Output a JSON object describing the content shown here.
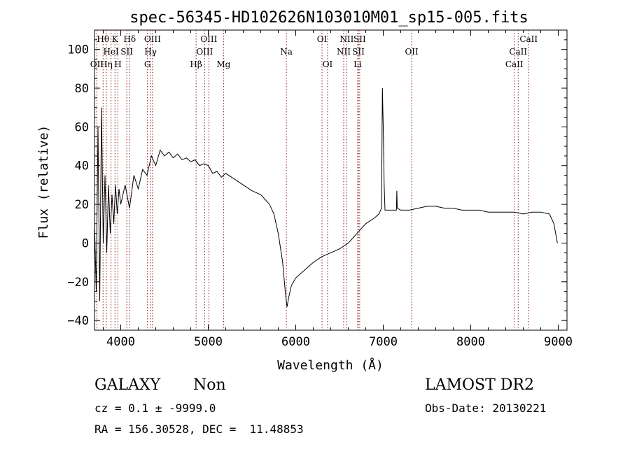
{
  "chart_data": {
    "type": "line",
    "title": "spec-56345-HD102626N103010M01_sp15-005.fits",
    "xlabel": "Wavelength (Å)",
    "ylabel": "Flux (relative)",
    "xlim": [
      3700,
      9100
    ],
    "ylim": [
      -45,
      110
    ],
    "xticks": [
      4000,
      5000,
      6000,
      7000,
      8000,
      9000
    ],
    "yticks": [
      -40,
      -20,
      0,
      20,
      40,
      60,
      80,
      100
    ],
    "grid": false,
    "line_color": "#000000",
    "marker_color": "#8b1a1a",
    "lines": [
      {
        "label": "OII",
        "x": 3727,
        "row": 3
      },
      {
        "label": "Hθ",
        "x": 3798,
        "row": 1
      },
      {
        "label": "Hη",
        "x": 3835,
        "row": 3
      },
      {
        "label": "HeI",
        "x": 3889,
        "row": 2
      },
      {
        "label": "K",
        "x": 3934,
        "row": 1
      },
      {
        "label": "H",
        "x": 3968,
        "row": 3
      },
      {
        "label": "SII",
        "x": 4069,
        "row": 2
      },
      {
        "label": "Hδ",
        "x": 4102,
        "row": 1
      },
      {
        "label": "G",
        "x": 4305,
        "row": 3
      },
      {
        "label": "Hγ",
        "x": 4341,
        "row": 2
      },
      {
        "label": "OIII",
        "x": 4363,
        "row": 1
      },
      {
        "label": "Hβ",
        "x": 4861,
        "row": 3
      },
      {
        "label": "OIII",
        "x": 4959,
        "row": 2
      },
      {
        "label": "OIII",
        "x": 5007,
        "row": 1
      },
      {
        "label": "Mg",
        "x": 5175,
        "row": 3
      },
      {
        "label": "Na",
        "x": 5893,
        "row": 2
      },
      {
        "label": "OI",
        "x": 6300,
        "row": 1
      },
      {
        "label": "OI",
        "x": 6364,
        "row": 3
      },
      {
        "label": "NII",
        "x": 6548,
        "row": 2
      },
      {
        "label": "NII",
        "x": 6583,
        "row": 1
      },
      {
        "label": "Li",
        "x": 6708,
        "row": 3
      },
      {
        "label": "SII",
        "x": 6716,
        "row": 2
      },
      {
        "label": "SII",
        "x": 6731,
        "row": 1
      },
      {
        "label": "OII",
        "x": 7325,
        "row": 2
      },
      {
        "label": "CaII",
        "x": 8498,
        "row": 3
      },
      {
        "label": "CaII",
        "x": 8542,
        "row": 2
      },
      {
        "label": "CaII",
        "x": 8662,
        "row": 1
      }
    ],
    "spectrum": [
      [
        3700,
        10
      ],
      [
        3720,
        -25
      ],
      [
        3740,
        60
      ],
      [
        3760,
        -30
      ],
      [
        3780,
        70
      ],
      [
        3800,
        0
      ],
      [
        3820,
        35
      ],
      [
        3840,
        -5
      ],
      [
        3860,
        30
      ],
      [
        3880,
        5
      ],
      [
        3900,
        25
      ],
      [
        3920,
        10
      ],
      [
        3940,
        30
      ],
      [
        3960,
        15
      ],
      [
        3980,
        28
      ],
      [
        4000,
        20
      ],
      [
        4050,
        30
      ],
      [
        4100,
        18
      ],
      [
        4150,
        35
      ],
      [
        4200,
        28
      ],
      [
        4250,
        38
      ],
      [
        4300,
        35
      ],
      [
        4350,
        45
      ],
      [
        4400,
        40
      ],
      [
        4450,
        48
      ],
      [
        4500,
        45
      ],
      [
        4550,
        47
      ],
      [
        4600,
        44
      ],
      [
        4650,
        46
      ],
      [
        4700,
        43
      ],
      [
        4750,
        44
      ],
      [
        4800,
        42
      ],
      [
        4850,
        43
      ],
      [
        4900,
        40
      ],
      [
        4950,
        41
      ],
      [
        5000,
        40
      ],
      [
        5050,
        36
      ],
      [
        5100,
        37
      ],
      [
        5150,
        34
      ],
      [
        5200,
        36
      ],
      [
        5300,
        33
      ],
      [
        5400,
        30
      ],
      [
        5500,
        27
      ],
      [
        5600,
        25
      ],
      [
        5700,
        20
      ],
      [
        5750,
        15
      ],
      [
        5800,
        5
      ],
      [
        5850,
        -10
      ],
      [
        5880,
        -25
      ],
      [
        5900,
        -33
      ],
      [
        5920,
        -28
      ],
      [
        5950,
        -22
      ],
      [
        6000,
        -18
      ],
      [
        6100,
        -14
      ],
      [
        6200,
        -10
      ],
      [
        6300,
        -7
      ],
      [
        6400,
        -5
      ],
      [
        6500,
        -3
      ],
      [
        6600,
        0
      ],
      [
        6700,
        5
      ],
      [
        6800,
        10
      ],
      [
        6900,
        13
      ],
      [
        6950,
        15
      ],
      [
        6980,
        18
      ],
      [
        6990,
        80
      ],
      [
        7000,
        60
      ],
      [
        7010,
        30
      ],
      [
        7020,
        17
      ],
      [
        7100,
        17
      ],
      [
        7150,
        17
      ],
      [
        7155,
        27
      ],
      [
        7160,
        18
      ],
      [
        7200,
        17
      ],
      [
        7300,
        17
      ],
      [
        7400,
        18
      ],
      [
        7500,
        19
      ],
      [
        7600,
        19
      ],
      [
        7700,
        18
      ],
      [
        7800,
        18
      ],
      [
        7900,
        17
      ],
      [
        8000,
        17
      ],
      [
        8100,
        17
      ],
      [
        8200,
        16
      ],
      [
        8300,
        16
      ],
      [
        8400,
        16
      ],
      [
        8500,
        16
      ],
      [
        8600,
        15
      ],
      [
        8700,
        16
      ],
      [
        8800,
        16
      ],
      [
        8900,
        15
      ],
      [
        8950,
        10
      ],
      [
        8990,
        0
      ]
    ]
  },
  "info": {
    "object_type": "GALAXY",
    "subclass": "Non",
    "cz_line": "cz = 0.1 ± -9999.0",
    "coord_line": "RA = 156.30528, DEC =  11.48853",
    "survey": "LAMOST DR2",
    "obs_date": "Obs-Date: 20130221"
  }
}
